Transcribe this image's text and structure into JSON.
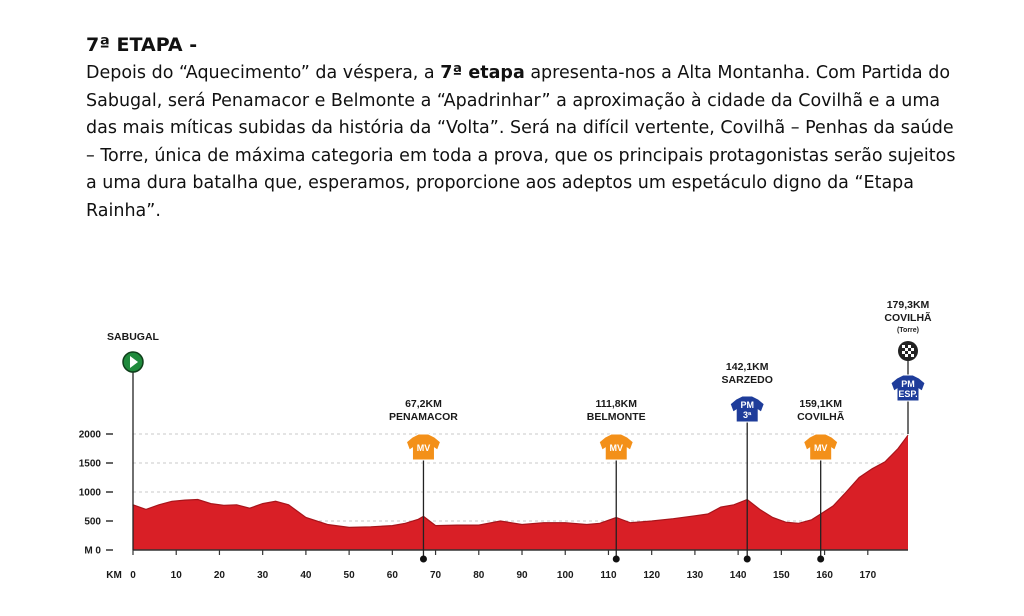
{
  "title": "7ª ETAPA -",
  "paragraph": {
    "before": "Depois do “Aquecimento” da véspera, a ",
    "bold": "7ª etapa",
    "after": " apresenta-nos a Alta Montanha. Com Partida do Sabugal, será Penamacor e Belmonte a “Apadrinhar” a aproximação à cidade da Covilhã e a uma das mais míticas subidas da história da “Volta”. Será na difícil vertente, Covilhã – Penhas da saúde – Torre, única de máxima categoria em toda a prova, que os principais protagonistas serão sujeitos a uma dura batalha que, esperamos, proporcione aos adeptos um espetáculo digno da “Etapa Rainha”."
  },
  "colors": {
    "profile_fill": "#d91f26",
    "profile_dark": "#a8141a",
    "mv_orange": "#f39019",
    "pm_blue": "#1e3c9a",
    "start_green": "#1f8a3c"
  },
  "chart_data": {
    "type": "area",
    "xlabel": "KM",
    "ylabel": "M",
    "xlim": [
      0,
      179.3
    ],
    "ylim": [
      0,
      2000
    ],
    "x_ticks": [
      0,
      10,
      20,
      30,
      40,
      50,
      60,
      70,
      80,
      90,
      100,
      110,
      120,
      130,
      140,
      150,
      160,
      170
    ],
    "y_ticks": [
      0,
      500,
      1000,
      1500,
      2000
    ],
    "start": {
      "label": "SABUGAL",
      "km": 0
    },
    "finish": {
      "km_label": "179,3KM",
      "place": "COVILHÃ",
      "sub": "(Torre)",
      "km": 179.3,
      "jersey_text": [
        "PM",
        "ESP."
      ]
    },
    "waypoints": [
      {
        "km_label": "67,2KM",
        "place": "PENAMACOR",
        "km": 67.2,
        "kind": "MV",
        "jersey_text": [
          "MV"
        ]
      },
      {
        "km_label": "111,8KM",
        "place": "BELMONTE",
        "km": 111.8,
        "kind": "MV",
        "jersey_text": [
          "MV"
        ]
      },
      {
        "km_label": "142,1KM",
        "place": "SARZEDO",
        "km": 142.1,
        "kind": "PM",
        "jersey_text": [
          "PM",
          "3ª"
        ]
      },
      {
        "km_label": "159,1KM",
        "place": "COVILHÃ",
        "km": 159.1,
        "kind": "MV",
        "jersey_text": [
          "MV"
        ]
      }
    ],
    "series": [
      {
        "x": [
          0,
          3,
          6,
          9,
          12,
          15,
          18,
          21,
          24,
          27,
          30,
          33,
          36,
          40,
          45,
          50,
          55,
          60,
          63,
          66,
          67.2,
          70,
          75,
          80,
          85,
          90,
          95,
          100,
          105,
          108,
          111.8,
          115,
          120,
          125,
          130,
          133,
          136,
          139,
          142.1,
          145,
          148,
          151,
          154,
          157,
          159.1,
          162,
          165,
          168,
          171,
          174,
          177,
          179.3
        ],
        "y": [
          780,
          700,
          780,
          840,
          860,
          870,
          800,
          770,
          780,
          720,
          800,
          840,
          780,
          560,
          440,
          390,
          400,
          420,
          460,
          530,
          580,
          420,
          430,
          430,
          500,
          440,
          470,
          470,
          440,
          460,
          560,
          470,
          500,
          540,
          590,
          620,
          740,
          780,
          870,
          700,
          560,
          480,
          460,
          520,
          620,
          760,
          1000,
          1250,
          1400,
          1520,
          1750,
          1980
        ]
      }
    ]
  }
}
